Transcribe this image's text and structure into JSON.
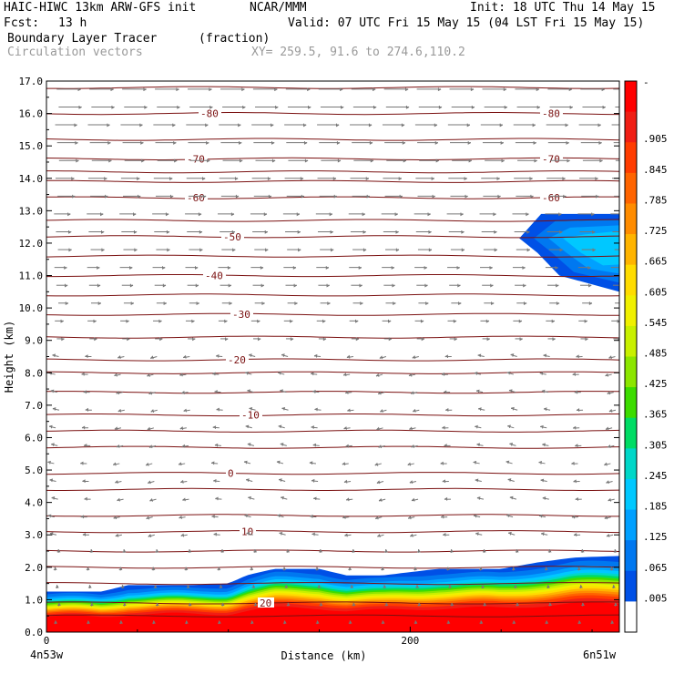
{
  "header": {
    "model": "HAIC-HIWC 13km ARW-GFS init",
    "org": "NCAR/MMM",
    "init": "Init: 18 UTC Thu 14 May 15",
    "fcst_label": "Fcst:",
    "fcst_value": "13 h",
    "valid": "Valid: 07 UTC Fri 15 May 15 (04 LST Fri 15 May 15)",
    "field": "Boundary Layer Tracer",
    "units": "(fraction)",
    "vectors": "Circulation vectors",
    "xy": "XY= 259.5, 91.6 to 274.6,110.2"
  },
  "chart_data": {
    "type": "heatmap",
    "title": "Boundary Layer Tracer",
    "xlabel": "Distance (km)",
    "ylabel": "Height (km)",
    "xlim": [
      0,
      315
    ],
    "ylim": [
      0,
      17
    ],
    "x_ticks": [
      0,
      200
    ],
    "x_tick_labels": [
      "0",
      "200"
    ],
    "x_end_labels": [
      "4n53w",
      "6n51w"
    ],
    "y_ticks": [
      0,
      1,
      2,
      3,
      4,
      5,
      6,
      7,
      8,
      9,
      10,
      11,
      12,
      13,
      14,
      15,
      16,
      17
    ],
    "y_tick_labels": [
      "0.0",
      "1.0",
      "2.0",
      "3.0",
      "4.0",
      "5.0",
      "6.0",
      "7.0",
      "8.0",
      "9.0",
      "10.0",
      "11.0",
      "12.0",
      "13.0",
      "14.0",
      "15.0",
      "16.0",
      "17.0"
    ],
    "colorbar": {
      "labels": [
        "-",
        ".905",
        ".845",
        ".785",
        ".725",
        ".665",
        ".605",
        ".545",
        ".485",
        ".425",
        ".365",
        ".305",
        ".245",
        ".185",
        ".125",
        ".065",
        ".005"
      ],
      "colors": [
        "#ff0000",
        "#f01e14",
        "#ff3c00",
        "#ff6400",
        "#ff8c00",
        "#ffb400",
        "#ffdc00",
        "#f0f000",
        "#c8f000",
        "#8ce600",
        "#3cdc00",
        "#00dc64",
        "#00d7c8",
        "#00c8ff",
        "#00a0ff",
        "#0078f0",
        "#0050e6",
        "#ffffff"
      ]
    },
    "temperature_contours": [
      {
        "label": "-80",
        "height_km": 16.0
      },
      {
        "label": "-70",
        "height_km": 14.6
      },
      {
        "label": "-60",
        "height_km": 13.4
      },
      {
        "label": "-50",
        "height_km": 12.2
      },
      {
        "label": "-40",
        "height_km": 11.0
      },
      {
        "label": "-30",
        "height_km": 9.8
      },
      {
        "label": "-20",
        "height_km": 8.4
      },
      {
        "label": "-10",
        "height_km": 6.7
      },
      {
        "label": "0",
        "height_km": 4.9
      },
      {
        "label": "10",
        "height_km": 3.1
      },
      {
        "label": "20",
        "height_km": 0.9
      }
    ],
    "extra_contour_heights_km": [
      16.8,
      15.2,
      14.2,
      13.9,
      12.7,
      11.6,
      10.4,
      9.1,
      8.0,
      7.4,
      6.2,
      5.7,
      4.4,
      3.6,
      2.5,
      2.0,
      1.5,
      0.5
    ],
    "boundary_layer_top_km": [
      [
        0,
        1.25
      ],
      [
        30,
        1.25
      ],
      [
        45,
        1.45
      ],
      [
        80,
        1.45
      ],
      [
        100,
        1.5
      ],
      [
        110,
        1.75
      ],
      [
        125,
        1.95
      ],
      [
        150,
        1.95
      ],
      [
        165,
        1.75
      ],
      [
        185,
        1.75
      ],
      [
        200,
        1.85
      ],
      [
        215,
        1.95
      ],
      [
        250,
        1.95
      ],
      [
        270,
        2.15
      ],
      [
        290,
        2.3
      ],
      [
        315,
        2.35
      ]
    ],
    "upper_plume": {
      "x_range_km": [
        260,
        315
      ],
      "top_km": 12.9,
      "bottom_km": 10.5
    }
  }
}
